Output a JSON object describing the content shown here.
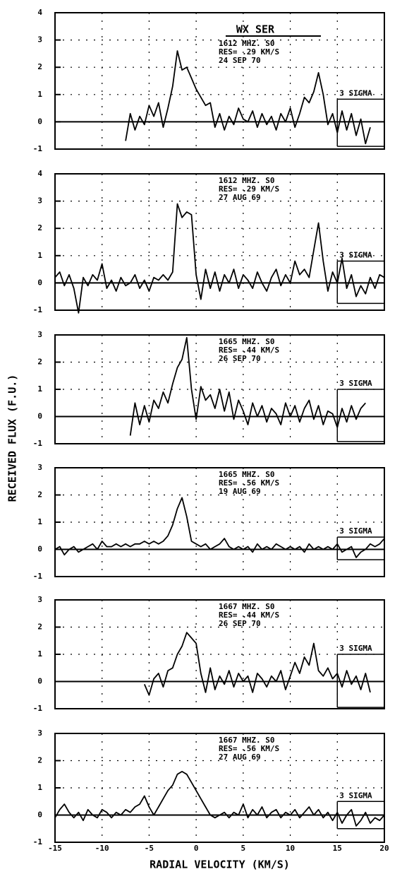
{
  "chart_data": [
    {
      "type": "line",
      "title": "WX SER",
      "notes": [
        "1612 MHZ. S0",
        "RES= .29 KM/S",
        "24 SEP 70"
      ],
      "sigma_label": "3 SIGMA",
      "sigma_bar": [
        -0.9,
        0.83
      ],
      "xlim": [
        -15,
        20
      ],
      "xticks": [
        -15,
        -10,
        -5,
        0,
        5,
        10,
        15,
        20
      ],
      "ylim": [
        -1,
        4
      ],
      "yticks": [
        -1,
        0,
        1,
        2,
        3,
        4
      ],
      "grid": true,
      "color": "#000000",
      "x": [
        -7.5,
        -7,
        -6.5,
        -6,
        -5.5,
        -5,
        -4.5,
        -4,
        -3.5,
        -3,
        -2.5,
        -2,
        -1.5,
        -1,
        -0.5,
        0,
        0.5,
        1,
        1.5,
        2,
        2.5,
        3,
        3.5,
        4,
        4.5,
        5,
        5.5,
        6,
        6.5,
        7,
        7.5,
        8,
        8.5,
        9,
        9.5,
        10,
        10.5,
        11,
        11.5,
        12,
        12.5,
        13,
        13.5,
        14,
        14.5,
        15,
        15.5,
        16,
        16.5,
        17,
        17.5,
        18,
        18.5
      ],
      "values": [
        -0.7,
        0.3,
        -0.3,
        0.2,
        -0.1,
        0.6,
        0.2,
        0.7,
        -0.2,
        0.5,
        1.3,
        2.6,
        1.9,
        2.0,
        1.6,
        1.2,
        0.9,
        0.6,
        0.7,
        -0.2,
        0.3,
        -0.3,
        0.2,
        -0.1,
        0.5,
        0.1,
        0.0,
        0.4,
        -0.2,
        0.3,
        -0.1,
        0.2,
        -0.3,
        0.3,
        0.0,
        0.5,
        -0.2,
        0.3,
        0.9,
        0.7,
        1.1,
        1.8,
        1.0,
        -0.1,
        0.3,
        -0.4,
        0.4,
        -0.3,
        0.3,
        -0.5,
        0.1,
        -0.8,
        -0.2
      ]
    },
    {
      "type": "line",
      "notes": [
        "1612 MHZ. S0",
        "RES= .29 KM/S",
        "27 AUG 69"
      ],
      "sigma_label": "3 SIGMA",
      "sigma_bar": [
        -0.75,
        0.8
      ],
      "xlim": [
        -15,
        20
      ],
      "xticks": [
        -15,
        -10,
        -5,
        0,
        5,
        10,
        15,
        20
      ],
      "ylim": [
        -1,
        4
      ],
      "yticks": [
        -1,
        0,
        1,
        2,
        3,
        4
      ],
      "grid": true,
      "color": "#000000",
      "x": [
        -15,
        -14.5,
        -14,
        -13.5,
        -13,
        -12.5,
        -12,
        -11.5,
        -11,
        -10.5,
        -10,
        -9.5,
        -9,
        -8.5,
        -8,
        -7.5,
        -7,
        -6.5,
        -6,
        -5.5,
        -5,
        -4.5,
        -4,
        -3.5,
        -3,
        -2.5,
        -2,
        -1.5,
        -1,
        -0.5,
        0,
        0.5,
        1,
        1.5,
        2,
        2.5,
        3,
        3.5,
        4,
        4.5,
        5,
        5.5,
        6,
        6.5,
        7,
        7.5,
        8,
        8.5,
        9,
        9.5,
        10,
        10.5,
        11,
        11.5,
        12,
        12.5,
        13,
        13.5,
        14,
        14.5,
        15,
        15.5,
        16,
        16.5,
        17,
        17.5,
        18,
        18.5,
        19,
        19.5,
        20
      ],
      "values": [
        0.2,
        0.4,
        -0.1,
        0.3,
        -0.2,
        -1.1,
        0.2,
        -0.1,
        0.3,
        0.1,
        0.7,
        -0.2,
        0.1,
        -0.3,
        0.2,
        -0.1,
        0.0,
        0.3,
        -0.2,
        0.1,
        -0.3,
        0.2,
        0.1,
        0.3,
        0.1,
        0.4,
        2.9,
        2.4,
        2.6,
        2.5,
        0.3,
        -0.6,
        0.5,
        -0.2,
        0.4,
        -0.3,
        0.3,
        0.0,
        0.5,
        -0.2,
        0.3,
        0.1,
        -0.2,
        0.4,
        0.0,
        -0.3,
        0.2,
        0.5,
        -0.1,
        0.3,
        0.0,
        0.8,
        0.3,
        0.5,
        0.2,
        1.2,
        2.2,
        0.8,
        -0.3,
        0.4,
        0.0,
        0.9,
        -0.2,
        0.3,
        -0.5,
        -0.1,
        -0.4,
        0.2,
        -0.2,
        0.3,
        0.2
      ]
    },
    {
      "type": "line",
      "notes": [
        "1665 MHZ. S0",
        "RES= .44 KM/S",
        "26 SEP 70"
      ],
      "sigma_label": "3 SIGMA",
      "sigma_bar": [
        -0.92,
        1.0
      ],
      "xlim": [
        -15,
        20
      ],
      "xticks": [
        -15,
        -10,
        -5,
        0,
        5,
        10,
        15,
        20
      ],
      "ylim": [
        -1,
        3
      ],
      "yticks": [
        -1,
        0,
        1,
        2,
        3
      ],
      "grid": true,
      "color": "#000000",
      "x": [
        -7,
        -6.5,
        -6,
        -5.5,
        -5,
        -4.5,
        -4,
        -3.5,
        -3,
        -2.5,
        -2,
        -1.5,
        -1,
        -0.5,
        0,
        0.5,
        1,
        1.5,
        2,
        2.5,
        3,
        3.5,
        4,
        4.5,
        5,
        5.5,
        6,
        6.5,
        7,
        7.5,
        8,
        8.5,
        9,
        9.5,
        10,
        10.5,
        11,
        11.5,
        12,
        12.5,
        13,
        13.5,
        14,
        14.5,
        15,
        15.5,
        16,
        16.5,
        17,
        17.5,
        18
      ],
      "values": [
        -0.7,
        0.5,
        -0.3,
        0.4,
        -0.2,
        0.6,
        0.3,
        0.9,
        0.5,
        1.2,
        1.8,
        2.1,
        2.9,
        1.0,
        -0.1,
        1.1,
        0.6,
        0.8,
        0.3,
        1.0,
        0.2,
        0.9,
        -0.1,
        0.6,
        0.2,
        -0.3,
        0.5,
        0.0,
        0.4,
        -0.2,
        0.3,
        0.1,
        -0.3,
        0.5,
        0.0,
        0.4,
        -0.2,
        0.3,
        0.6,
        -0.1,
        0.4,
        -0.3,
        0.2,
        0.1,
        -0.4,
        0.3,
        -0.2,
        0.4,
        -0.1,
        0.3,
        0.5
      ]
    },
    {
      "type": "line",
      "notes": [
        "1665 MHZ. S0",
        "RES= .56 KM/S",
        "19 AUG 69"
      ],
      "sigma_label": "3 SIGMA",
      "sigma_bar": [
        -0.38,
        0.45
      ],
      "xlim": [
        -15,
        20
      ],
      "xticks": [
        -15,
        -10,
        -5,
        0,
        5,
        10,
        15,
        20
      ],
      "ylim": [
        -1,
        3
      ],
      "yticks": [
        -1,
        0,
        1,
        2,
        3
      ],
      "grid": true,
      "color": "#000000",
      "x": [
        -15,
        -14.5,
        -14,
        -13.5,
        -13,
        -12.5,
        -12,
        -11.5,
        -11,
        -10.5,
        -10,
        -9.5,
        -9,
        -8.5,
        -8,
        -7.5,
        -7,
        -6.5,
        -6,
        -5.5,
        -5,
        -4.5,
        -4,
        -3.5,
        -3,
        -2.5,
        -2,
        -1.5,
        -1,
        -0.5,
        0,
        0.5,
        1,
        1.5,
        2,
        2.5,
        3,
        3.5,
        4,
        4.5,
        5,
        5.5,
        6,
        6.5,
        7,
        7.5,
        8,
        8.5,
        9,
        9.5,
        10,
        10.5,
        11,
        11.5,
        12,
        12.5,
        13,
        13.5,
        14,
        14.5,
        15,
        15.5,
        16,
        16.5,
        17,
        17.5,
        18,
        18.5,
        19,
        19.5,
        20
      ],
      "values": [
        0.0,
        0.1,
        -0.2,
        0.0,
        0.1,
        -0.1,
        0.0,
        0.1,
        0.2,
        0.0,
        0.3,
        0.1,
        0.1,
        0.2,
        0.1,
        0.2,
        0.1,
        0.2,
        0.2,
        0.3,
        0.2,
        0.3,
        0.2,
        0.3,
        0.5,
        0.9,
        1.5,
        1.9,
        1.2,
        0.3,
        0.2,
        0.1,
        0.2,
        0.0,
        0.1,
        0.2,
        0.4,
        0.1,
        0.0,
        0.1,
        0.0,
        0.1,
        -0.1,
        0.2,
        0.0,
        0.1,
        0.0,
        0.2,
        0.1,
        0.0,
        0.1,
        0.0,
        0.1,
        -0.1,
        0.2,
        0.0,
        0.1,
        0.0,
        0.1,
        0.0,
        0.2,
        -0.1,
        0.0,
        0.1,
        -0.3,
        -0.1,
        0.0,
        0.2,
        0.1,
        0.2,
        0.4
      ]
    },
    {
      "type": "line",
      "notes": [
        "1667 MHZ. S0",
        "RES= .44 KM/S",
        "26 SEP 70"
      ],
      "sigma_label": "3 SIGMA",
      "sigma_bar": [
        -0.95,
        1.0
      ],
      "xlim": [
        -15,
        20
      ],
      "xticks": [
        -15,
        -10,
        -5,
        0,
        5,
        10,
        15,
        20
      ],
      "ylim": [
        -1,
        3
      ],
      "yticks": [
        -1,
        0,
        1,
        2,
        3
      ],
      "grid": true,
      "color": "#000000",
      "x": [
        -5.5,
        -5,
        -4.5,
        -4,
        -3.5,
        -3,
        -2.5,
        -2,
        -1.5,
        -1,
        -0.5,
        0,
        0.5,
        1,
        1.5,
        2,
        2.5,
        3,
        3.5,
        4,
        4.5,
        5,
        5.5,
        6,
        6.5,
        7,
        7.5,
        8,
        8.5,
        9,
        9.5,
        10,
        10.5,
        11,
        11.5,
        12,
        12.5,
        13,
        13.5,
        14,
        14.5,
        15,
        15.5,
        16,
        16.5,
        17,
        17.5,
        18,
        18.5
      ],
      "values": [
        -0.1,
        -0.5,
        0.1,
        0.3,
        -0.2,
        0.4,
        0.5,
        1.0,
        1.3,
        1.8,
        1.6,
        1.4,
        0.3,
        -0.4,
        0.5,
        -0.3,
        0.2,
        -0.1,
        0.4,
        -0.2,
        0.3,
        0.0,
        0.2,
        -0.4,
        0.3,
        0.1,
        -0.2,
        0.2,
        0.0,
        0.4,
        -0.3,
        0.2,
        0.7,
        0.3,
        0.9,
        0.6,
        1.4,
        0.4,
        0.2,
        0.5,
        0.1,
        0.3,
        -0.2,
        0.4,
        -0.1,
        0.2,
        -0.3,
        0.3,
        -0.4
      ]
    },
    {
      "type": "line",
      "notes": [
        "1667 MHZ. S0",
        "RES= .56 KM/S",
        "27 AUG 69"
      ],
      "sigma_label": "3 SIGMA",
      "sigma_bar": [
        -0.5,
        0.5
      ],
      "xlim": [
        -15,
        20
      ],
      "xticks": [
        -15,
        -10,
        -5,
        0,
        5,
        10,
        15,
        20
      ],
      "ylim": [
        -1,
        3
      ],
      "yticks": [
        -1,
        0,
        1,
        2,
        3
      ],
      "grid": true,
      "color": "#000000",
      "xlabel": "RADIAL VELOCITY (KM/S)",
      "ylabel": "RECEIVED FLUX (F.U.)",
      "x": [
        -15,
        -14.5,
        -14,
        -13.5,
        -13,
        -12.5,
        -12,
        -11.5,
        -11,
        -10.5,
        -10,
        -9.5,
        -9,
        -8.5,
        -8,
        -7.5,
        -7,
        -6.5,
        -6,
        -5.5,
        -5,
        -4.5,
        -4,
        -3.5,
        -3,
        -2.5,
        -2,
        -1.5,
        -1,
        -0.5,
        0,
        0.5,
        1,
        1.5,
        2,
        2.5,
        3,
        3.5,
        4,
        4.5,
        5,
        5.5,
        6,
        6.5,
        7,
        7.5,
        8,
        8.5,
        9,
        9.5,
        10,
        10.5,
        11,
        11.5,
        12,
        12.5,
        13,
        13.5,
        14,
        14.5,
        15,
        15.5,
        16,
        16.5,
        17,
        17.5,
        18,
        18.5,
        19,
        19.5,
        20
      ],
      "values": [
        -0.1,
        0.2,
        0.4,
        0.1,
        -0.1,
        0.1,
        -0.2,
        0.2,
        0.0,
        -0.1,
        0.2,
        0.1,
        -0.1,
        0.1,
        0.0,
        0.2,
        0.1,
        0.3,
        0.4,
        0.7,
        0.3,
        0.0,
        0.3,
        0.6,
        0.9,
        1.1,
        1.5,
        1.6,
        1.5,
        1.2,
        0.9,
        0.6,
        0.3,
        0.0,
        -0.1,
        0.0,
        0.1,
        -0.1,
        0.1,
        0.0,
        0.4,
        -0.1,
        0.2,
        0.0,
        0.3,
        -0.1,
        0.1,
        0.2,
        -0.1,
        0.1,
        0.0,
        0.2,
        -0.1,
        0.1,
        0.3,
        0.0,
        0.2,
        -0.1,
        0.1,
        -0.2,
        0.1,
        -0.3,
        0.0,
        0.2,
        -0.4,
        -0.2,
        0.1,
        -0.3,
        -0.1,
        -0.2,
        0.0
      ]
    }
  ]
}
